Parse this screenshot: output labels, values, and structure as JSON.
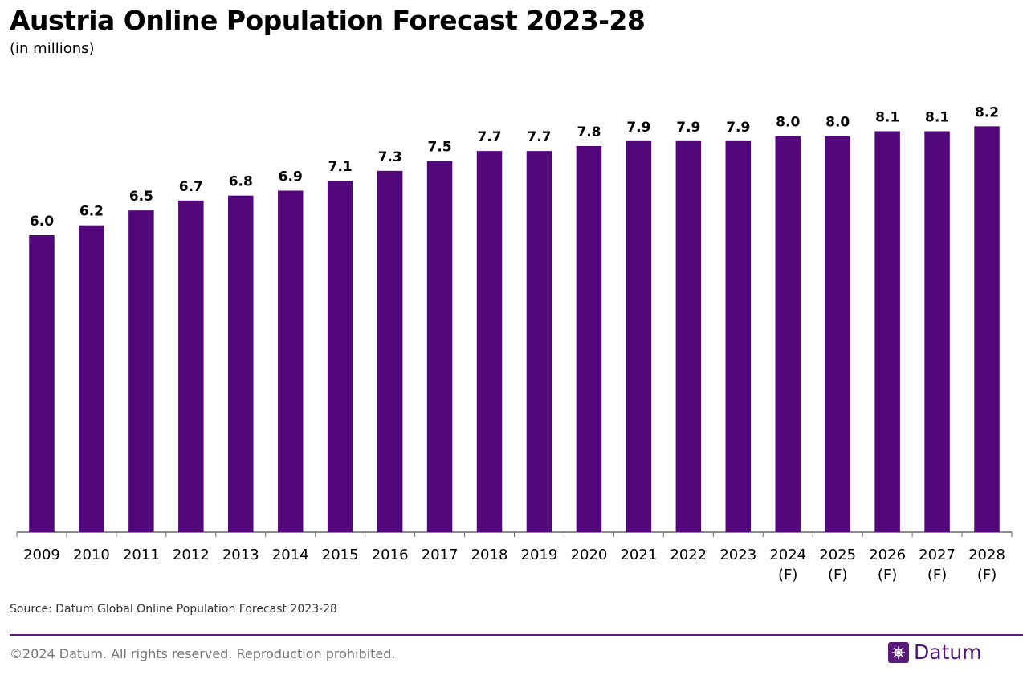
{
  "header": {
    "title": "Austria Online Population Forecast 2023-28",
    "subtitle": "(in millions)"
  },
  "footer": {
    "source": "Source: Datum Global Online Population Forecast 2023-28",
    "copyright": "©2024 Datum. All rights reserved. Reproduction prohibited.",
    "brand": "Datum"
  },
  "colors": {
    "bar": "#52077a",
    "axis": "#666666",
    "brand": "#5a1a7a"
  },
  "chart_data": {
    "type": "bar",
    "title": "Austria Online Population Forecast 2023-28",
    "subtitle": "(in millions)",
    "xlabel": "",
    "ylabel": "",
    "ylim": [
      0,
      8.9
    ],
    "grid": false,
    "legend": "none",
    "categories": [
      "2009",
      "2010",
      "2011",
      "2012",
      "2013",
      "2014",
      "2015",
      "2016",
      "2017",
      "2018",
      "2019",
      "2020",
      "2021",
      "2022",
      "2023",
      "2024\n(F)",
      "2025\n(F)",
      "2026\n(F)",
      "2027\n(F)",
      "2028\n(F)"
    ],
    "values": [
      6.0,
      6.2,
      6.5,
      6.7,
      6.8,
      6.9,
      7.1,
      7.3,
      7.5,
      7.7,
      7.7,
      7.8,
      7.9,
      7.9,
      7.9,
      8.0,
      8.0,
      8.1,
      8.1,
      8.2
    ],
    "data_labels": [
      "6.0",
      "6.2",
      "6.5",
      "6.7",
      "6.8",
      "6.9",
      "7.1",
      "7.3",
      "7.5",
      "7.7",
      "7.7",
      "7.8",
      "7.9",
      "7.9",
      "7.9",
      "8.0",
      "8.0",
      "8.1",
      "8.1",
      "8.2"
    ]
  }
}
